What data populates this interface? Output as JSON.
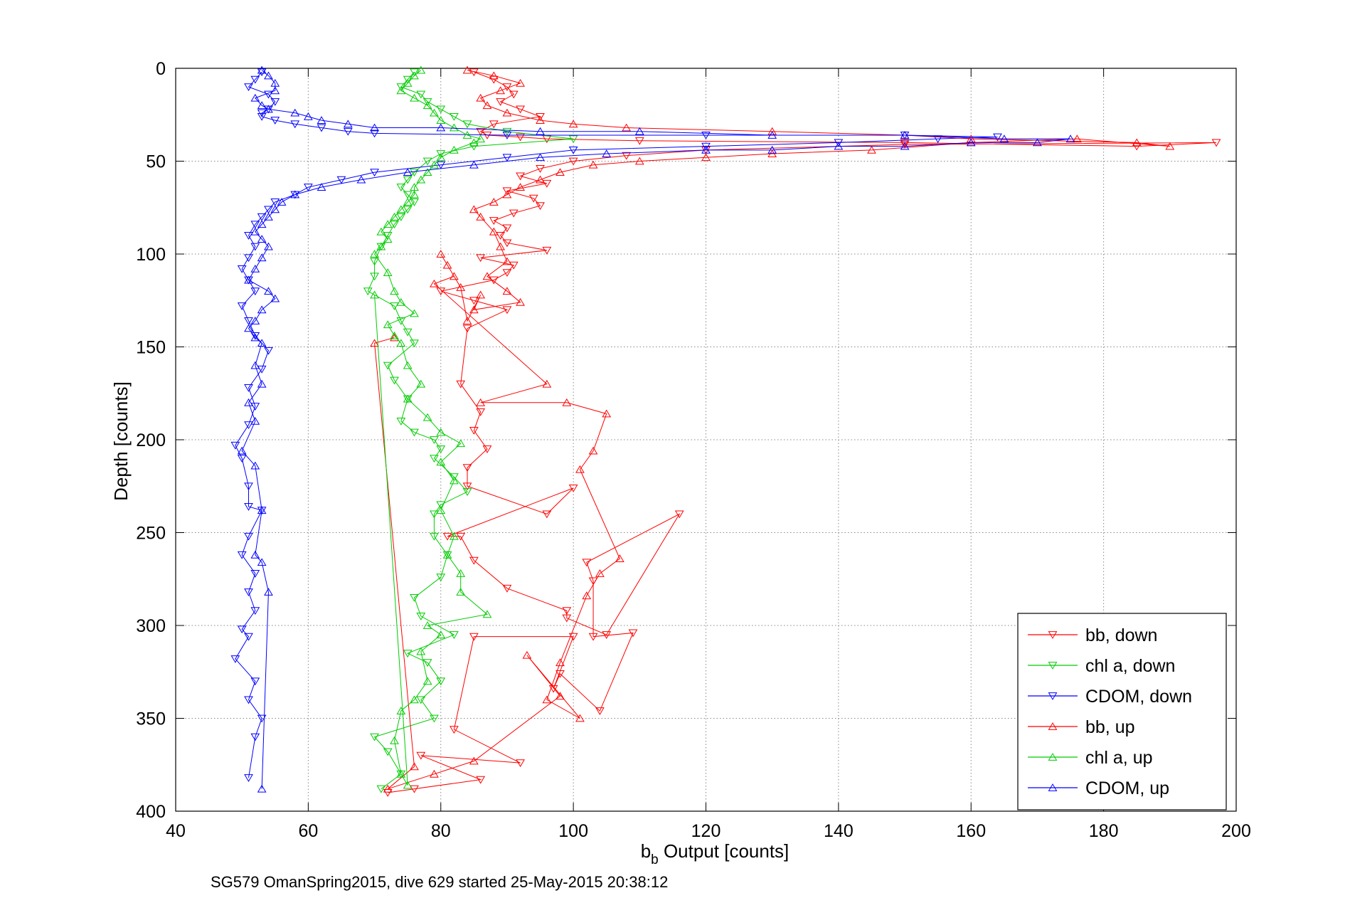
{
  "chart_data": {
    "type": "line",
    "title": "",
    "xlabel": {
      "base": "b",
      "subscript": "b",
      "rest": " Output [counts]"
    },
    "ylabel": "Depth [counts]",
    "xlim": [
      40,
      200
    ],
    "ylim": [
      0,
      400
    ],
    "y_reversed": true,
    "grid": true,
    "grid_style": "dotted",
    "x_ticks": [
      40,
      60,
      80,
      100,
      120,
      140,
      160,
      180,
      200
    ],
    "y_ticks": [
      0,
      50,
      100,
      150,
      200,
      250,
      300,
      350,
      400
    ],
    "legend_position": "bottom-right",
    "caption": "SG579 OmanSpring2015, dive 629 started 25-May-2015 20:38:12",
    "series": [
      {
        "name": "bb, down",
        "color": "#ff0000",
        "marker": "triangle-down",
        "x": [
          85,
          88,
          90,
          91,
          89,
          92,
          95,
          88,
          86,
          87,
          92,
          96,
          110,
          150,
          185,
          197,
          150,
          120,
          108,
          100,
          95,
          92,
          96,
          90,
          94,
          95,
          91,
          88,
          90,
          89,
          90,
          96,
          86,
          91,
          90,
          88,
          80,
          85,
          90,
          84,
          83,
          86,
          85,
          87,
          84,
          84,
          96,
          100,
          81,
          83,
          85,
          90,
          99,
          99,
          105,
          116,
          102,
          103,
          103,
          109,
          104,
          98,
          97,
          100,
          85,
          82,
          92,
          77,
          86,
          72,
          76
        ],
        "y": [
          2,
          6,
          10,
          14,
          18,
          22,
          26,
          30,
          34,
          36,
          37,
          38,
          39,
          40,
          42,
          40,
          41,
          44,
          47,
          50,
          54,
          58,
          62,
          66,
          70,
          74,
          78,
          82,
          86,
          90,
          94,
          98,
          102,
          106,
          110,
          114,
          120,
          125,
          130,
          140,
          170,
          185,
          195,
          205,
          215,
          225,
          240,
          226,
          252,
          252,
          265,
          280,
          292,
          296,
          305,
          240,
          266,
          276,
          306,
          304,
          346,
          326,
          334,
          306,
          306,
          356,
          374,
          370,
          383,
          390,
          388
        ]
      },
      {
        "name": "chl a, down",
        "color": "#00cc00",
        "marker": "triangle-down",
        "x": [
          76,
          75,
          74,
          77,
          78,
          80,
          82,
          84,
          90,
          100,
          85,
          80,
          78,
          76,
          75,
          74,
          75,
          76,
          75,
          74,
          73,
          72,
          71,
          70,
          70,
          69,
          73,
          74,
          75,
          76,
          72,
          73,
          75,
          74,
          76,
          79,
          80,
          79,
          82,
          84,
          80,
          79,
          79,
          81,
          80,
          76,
          77,
          82,
          75,
          78,
          80,
          77,
          79,
          70,
          72,
          74,
          71
        ],
        "y": [
          2,
          6,
          10,
          14,
          18,
          22,
          26,
          30,
          34,
          38,
          42,
          46,
          50,
          56,
          60,
          64,
          68,
          72,
          76,
          80,
          84,
          90,
          96,
          104,
          112,
          120,
          128,
          136,
          142,
          148,
          160,
          168,
          178,
          190,
          196,
          200,
          205,
          210,
          220,
          228,
          235,
          240,
          252,
          262,
          274,
          285,
          295,
          305,
          315,
          320,
          330,
          340,
          350,
          360,
          368,
          380,
          388
        ]
      },
      {
        "name": "CDOM, down",
        "color": "#0000ff",
        "marker": "triangle-down",
        "x": [
          53,
          52,
          51,
          54,
          55,
          54,
          53,
          53,
          55,
          58,
          62,
          66,
          70,
          90,
          120,
          150,
          164,
          155,
          140,
          120,
          100,
          90,
          80,
          70,
          65,
          60,
          58,
          55,
          54,
          53,
          52,
          51,
          52,
          51,
          50,
          51,
          52,
          50,
          51,
          52,
          54,
          53,
          51,
          52,
          51,
          49,
          50,
          51,
          51,
          53,
          51,
          50,
          52,
          51,
          52,
          50,
          51,
          49,
          52,
          51,
          53,
          52,
          51
        ],
        "y": [
          2,
          6,
          10,
          14,
          18,
          22,
          24,
          26,
          28,
          30,
          32,
          34,
          35,
          36,
          36,
          36,
          37,
          38,
          40,
          42,
          44,
          48,
          52,
          56,
          60,
          64,
          68,
          72,
          76,
          80,
          84,
          90,
          96,
          102,
          108,
          114,
          120,
          128,
          136,
          144,
          152,
          162,
          172,
          182,
          192,
          203,
          210,
          225,
          236,
          238,
          252,
          262,
          272,
          282,
          292,
          302,
          306,
          318,
          330,
          340,
          350,
          360,
          382
        ]
      },
      {
        "name": "bb, up",
        "color": "#ff0000",
        "marker": "triangle-up",
        "x": [
          84,
          88,
          92,
          89,
          86,
          87,
          90,
          95,
          100,
          108,
          130,
          150,
          160,
          185,
          190,
          176,
          160,
          145,
          130,
          120,
          110,
          103,
          98,
          95,
          92,
          90,
          88,
          85,
          86,
          88,
          89,
          90,
          87,
          90,
          92,
          85,
          86,
          84,
          83,
          80,
          81,
          82,
          79,
          96,
          86,
          99,
          105,
          103,
          101,
          107,
          104,
          102,
          98,
          96,
          101,
          93,
          98,
          85,
          79,
          72,
          76,
          70,
          73
        ],
        "y": [
          1,
          4,
          8,
          12,
          16,
          20,
          24,
          28,
          30,
          32,
          34,
          36,
          38,
          40,
          42,
          38,
          40,
          44,
          46,
          48,
          50,
          52,
          56,
          60,
          64,
          68,
          72,
          76,
          80,
          88,
          96,
          104,
          112,
          120,
          126,
          130,
          122,
          136,
          118,
          100,
          106,
          112,
          116,
          170,
          180,
          180,
          186,
          206,
          216,
          264,
          272,
          284,
          320,
          340,
          350,
          316,
          338,
          373,
          380,
          388,
          376,
          148,
          145
        ]
      },
      {
        "name": "chl a, up",
        "color": "#00cc00",
        "marker": "triangle-up",
        "x": [
          77,
          76,
          75,
          74,
          76,
          78,
          79,
          80,
          82,
          84,
          86,
          85,
          82,
          80,
          79,
          78,
          77,
          76,
          76,
          75,
          74,
          73,
          72,
          71,
          72,
          71,
          70,
          72,
          73,
          74,
          76,
          72,
          73,
          74,
          75,
          77,
          75,
          78,
          80,
          83,
          80,
          82,
          80,
          82,
          81,
          83,
          83,
          87,
          78,
          80,
          77,
          78,
          76,
          74,
          73,
          74,
          75,
          70
        ],
        "y": [
          1,
          4,
          8,
          12,
          16,
          20,
          24,
          28,
          32,
          36,
          38,
          40,
          44,
          48,
          52,
          56,
          60,
          64,
          68,
          72,
          76,
          80,
          84,
          88,
          92,
          96,
          100,
          110,
          120,
          126,
          132,
          138,
          144,
          148,
          160,
          170,
          178,
          188,
          196,
          202,
          212,
          222,
          238,
          252,
          262,
          272,
          282,
          294,
          300,
          305,
          314,
          330,
          340,
          346,
          362,
          380,
          386,
          122
        ]
      },
      {
        "name": "CDOM, up",
        "color": "#0000ff",
        "marker": "triangle-up",
        "x": [
          53,
          54,
          55,
          55,
          52,
          53,
          54,
          58,
          60,
          62,
          66,
          70,
          80,
          95,
          110,
          130,
          150,
          165,
          175,
          170,
          160,
          150,
          140,
          130,
          120,
          105,
          95,
          85,
          75,
          68,
          62,
          58,
          56,
          55,
          54,
          53,
          52,
          53,
          54,
          53,
          52,
          51,
          54,
          55,
          53,
          52,
          51,
          52,
          53,
          52,
          53,
          51,
          52,
          50,
          52,
          53,
          52,
          53,
          54,
          53
        ],
        "y": [
          1,
          4,
          8,
          12,
          16,
          20,
          22,
          24,
          26,
          28,
          30,
          32,
          32,
          34,
          34,
          36,
          36,
          38,
          38,
          40,
          40,
          42,
          42,
          44,
          44,
          46,
          48,
          52,
          56,
          60,
          64,
          68,
          72,
          76,
          80,
          84,
          88,
          92,
          96,
          102,
          108,
          114,
          120,
          124,
          130,
          136,
          140,
          145,
          148,
          160,
          170,
          180,
          190,
          206,
          214,
          238,
          262,
          266,
          282,
          388
        ]
      }
    ]
  }
}
